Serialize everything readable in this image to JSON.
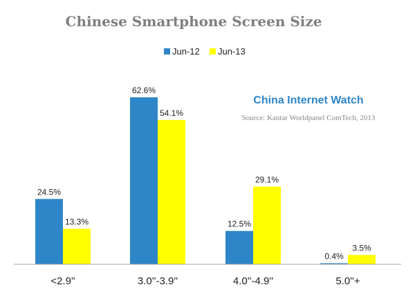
{
  "chart_data": {
    "type": "bar",
    "title": "Chinese Smartphone Screen Size",
    "categories": [
      "<2.9''",
      "3.0''-3.9''",
      "4.0''-4.9''",
      "5.0''+"
    ],
    "series": [
      {
        "name": "Jun-12",
        "values": [
          24.5,
          62.6,
          12.5,
          0.4
        ],
        "labels": [
          "24.5%",
          "62.6%",
          "12.5%",
          "0.4%"
        ],
        "color": "#2e86c8"
      },
      {
        "name": "Jun-13",
        "values": [
          13.3,
          54.1,
          29.1,
          3.5
        ],
        "labels": [
          "13.3%",
          "54.1%",
          "29.1%",
          "3.5%"
        ],
        "color": "#ffff00"
      }
    ],
    "ylim": [
      0,
      70
    ],
    "xlabel": "",
    "ylabel": "",
    "grid": false,
    "legend_position": "top-center"
  },
  "watermark": {
    "brand": "China Internet Watch",
    "source": "Source: Kantar Worldpanel ComTech, 2013"
  },
  "colors": {
    "axis": "#a6a6a6",
    "title": "#7f7f7f"
  }
}
